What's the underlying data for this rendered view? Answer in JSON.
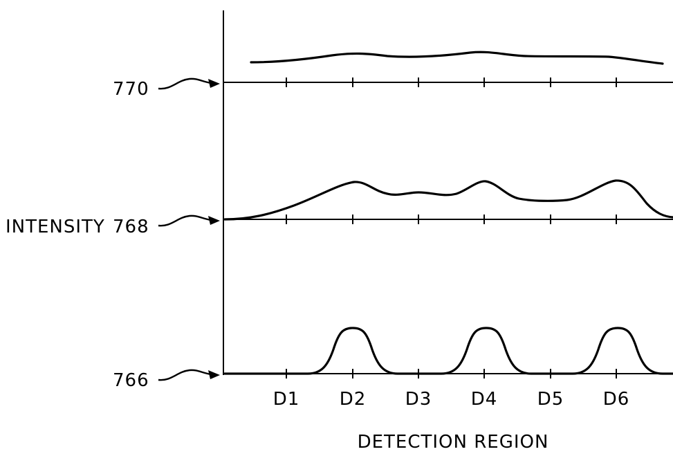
{
  "figure": {
    "y_label": "INTENSITY",
    "x_label": "DETECTION REGION",
    "x_ticks": [
      "D1",
      "D2",
      "D3",
      "D4",
      "D5",
      "D6"
    ],
    "traces": [
      {
        "ref": "770"
      },
      {
        "ref": "768"
      },
      {
        "ref": "766"
      }
    ]
  }
}
